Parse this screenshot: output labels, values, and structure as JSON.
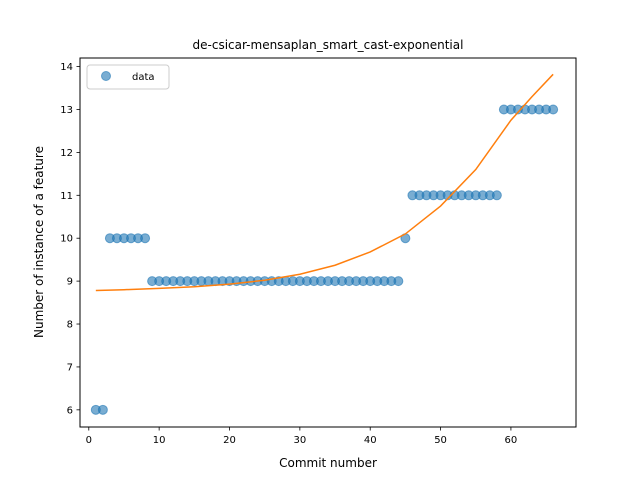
{
  "chart_data": {
    "type": "scatter",
    "title": "de-csicar-mensaplan_smart_cast-exponential",
    "xlabel": "Commit number",
    "ylabel": "Number of instance of a feature",
    "xlim": [
      -1.25,
      69.25
    ],
    "ylim": [
      5.6,
      14.2
    ],
    "xticks": [
      0,
      10,
      20,
      30,
      40,
      50,
      60
    ],
    "yticks": [
      6,
      7,
      8,
      9,
      10,
      11,
      12,
      13,
      14
    ],
    "grid": false,
    "legend_position": "upper-left",
    "series": [
      {
        "name": "data",
        "kind": "points",
        "color": "#1f77b4",
        "x": [
          1,
          2,
          3,
          4,
          5,
          6,
          7,
          8,
          9,
          10,
          11,
          12,
          13,
          14,
          15,
          16,
          17,
          18,
          19,
          20,
          21,
          22,
          23,
          24,
          25,
          26,
          27,
          28,
          29,
          30,
          31,
          32,
          33,
          34,
          35,
          36,
          37,
          38,
          39,
          40,
          41,
          42,
          43,
          44,
          45,
          46,
          47,
          48,
          49,
          50,
          51,
          52,
          53,
          54,
          55,
          56,
          57,
          58,
          59,
          60,
          61,
          62,
          63,
          64,
          65,
          66
        ],
        "y": [
          6,
          6,
          10,
          10,
          10,
          10,
          10,
          10,
          9,
          9,
          9,
          9,
          9,
          9,
          9,
          9,
          9,
          9,
          9,
          9,
          9,
          9,
          9,
          9,
          9,
          9,
          9,
          9,
          9,
          9,
          9,
          9,
          9,
          9,
          9,
          9,
          9,
          9,
          9,
          9,
          9,
          9,
          9,
          9,
          10,
          11,
          11,
          11,
          11,
          11,
          11,
          11,
          11,
          11,
          11,
          11,
          11,
          11,
          13,
          13,
          13,
          13,
          13,
          13,
          13,
          13
        ]
      },
      {
        "kind": "fit-line",
        "color": "#ff7f0e",
        "x": [
          1,
          5,
          10,
          15,
          20,
          25,
          30,
          35,
          40,
          45,
          50,
          55,
          60,
          63,
          66
        ],
        "y": [
          8.78,
          8.8,
          8.83,
          8.87,
          8.93,
          9.02,
          9.16,
          9.37,
          9.68,
          10.1,
          10.75,
          11.6,
          12.75,
          13.3,
          13.82
        ]
      }
    ]
  }
}
